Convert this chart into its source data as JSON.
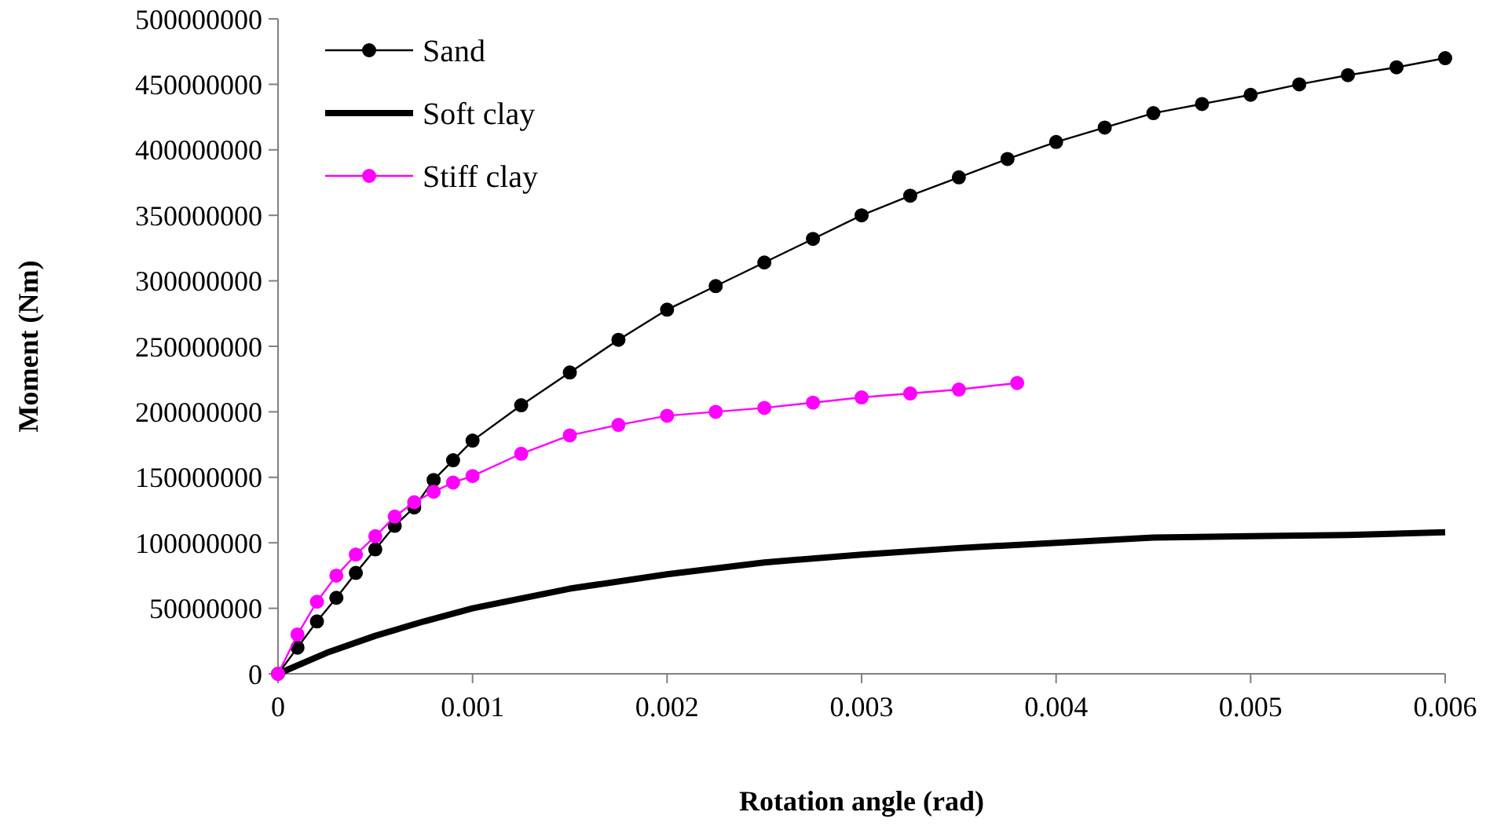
{
  "chart_data": {
    "type": "line",
    "xlabel": "Rotation angle (rad)",
    "ylabel": "Moment (Nm)",
    "xlim": [
      0,
      0.006
    ],
    "xticks": [
      0,
      0.001,
      0.002,
      0.003,
      0.004,
      0.005,
      0.006
    ],
    "ylim": [
      0,
      500000000
    ],
    "yticks": [
      0,
      50000000,
      100000000,
      150000000,
      200000000,
      250000000,
      300000000,
      350000000,
      400000000,
      450000000,
      500000000
    ],
    "grid": false,
    "legend": "top left",
    "series": [
      {
        "name": "Sand",
        "color": "#000000",
        "marker": "circle",
        "x": [
          0,
          0.0001,
          0.0002,
          0.0003,
          0.0004,
          0.0005,
          0.0006,
          0.0007,
          0.0008,
          0.0009,
          0.001,
          0.00125,
          0.0015,
          0.00175,
          0.002,
          0.00225,
          0.0025,
          0.00275,
          0.003,
          0.00325,
          0.0035,
          0.00375,
          0.004,
          0.00425,
          0.0045,
          0.00475,
          0.005,
          0.00525,
          0.0055,
          0.00575,
          0.006
        ],
        "values": [
          0,
          20000000,
          40000000,
          58000000,
          77000000,
          95000000,
          113000000,
          127000000,
          148000000,
          163000000,
          178000000,
          205000000,
          230000000,
          255000000,
          278000000,
          296000000,
          314000000,
          332000000,
          350000000,
          365000000,
          379000000,
          393000000,
          406000000,
          417000000,
          428000000,
          435000000,
          442000000,
          450000000,
          457000000,
          463000000,
          470000000
        ]
      },
      {
        "name": "Soft clay",
        "color": "#000000",
        "marker": "none",
        "x": [
          0,
          0.00025,
          0.0005,
          0.00075,
          0.001,
          0.0015,
          0.002,
          0.0025,
          0.003,
          0.0035,
          0.004,
          0.0045,
          0.005,
          0.0055,
          0.006
        ],
        "values": [
          0,
          16000000,
          29000000,
          40000000,
          50000000,
          65000000,
          76000000,
          85000000,
          91000000,
          96000000,
          100000000,
          104000000,
          105000000,
          106000000,
          108000000
        ]
      },
      {
        "name": "Stiff clay",
        "color": "#ff00ff",
        "marker": "circle",
        "x": [
          0,
          0.0001,
          0.0002,
          0.0003,
          0.0004,
          0.0005,
          0.0006,
          0.0007,
          0.0008,
          0.0009,
          0.001,
          0.00125,
          0.0015,
          0.00175,
          0.002,
          0.00225,
          0.0025,
          0.00275,
          0.003,
          0.00325,
          0.0035,
          0.0038
        ],
        "values": [
          0,
          30000000,
          55000000,
          75000000,
          91000000,
          105000000,
          120000000,
          131000000,
          139000000,
          146000000,
          151000000,
          168000000,
          182000000,
          190000000,
          197000000,
          200000000,
          203000000,
          207000000,
          211000000,
          214000000,
          217000000,
          222000000
        ]
      }
    ]
  }
}
